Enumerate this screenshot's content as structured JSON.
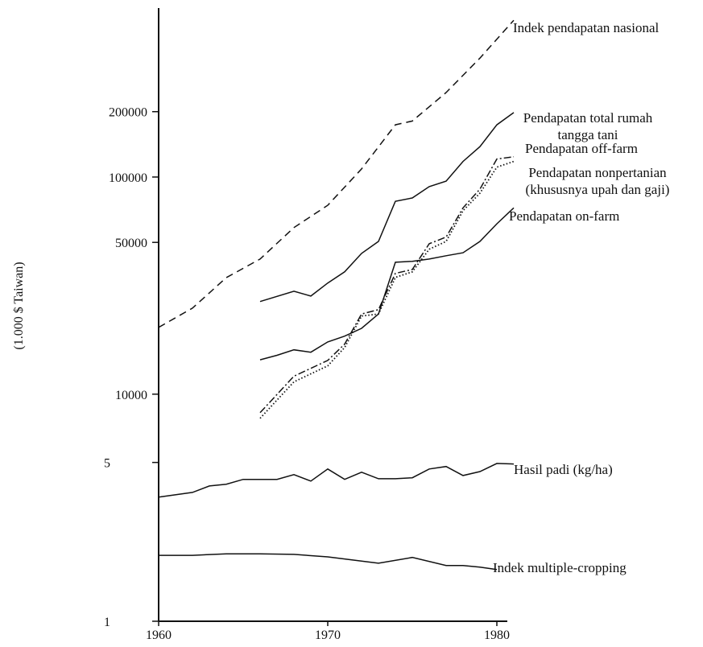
{
  "chart_data": {
    "type": "line",
    "y_label": "(1.000 $ Taiwan)",
    "xlim": [
      1960,
      1981
    ],
    "xticks": [
      1960,
      1970,
      1980
    ],
    "ylim": [
      900,
      600000
    ],
    "yticks": [
      10000,
      50000,
      100000,
      200000
    ],
    "y2lim": [
      1,
      500
    ],
    "y2ticks": [
      1,
      5
    ],
    "log_scale": true,
    "series": [
      {
        "name": "Indek pendapatan nasional",
        "color": "#111111",
        "style": "dashed",
        "x": [
          1960,
          1962,
          1964,
          1966,
          1968,
          1970,
          1972,
          1974,
          1975,
          1977,
          1979,
          1981
        ],
        "values": [
          20300,
          24900,
          34400,
          41900,
          58500,
          74100,
          109000,
          174000,
          181000,
          245000,
          353000,
          527000
        ]
      },
      {
        "name": "Pendapatan total rumah tangga tani",
        "color": "#111111",
        "style": "solid",
        "x": [
          1966,
          1968,
          1969,
          1970,
          1971,
          1972,
          1973,
          1974,
          1975,
          1976,
          1977,
          1978,
          1979,
          1980,
          1981
        ],
        "values": [
          26700,
          29800,
          28300,
          32500,
          36600,
          44500,
          50500,
          77300,
          80100,
          90300,
          95700,
          118000,
          138000,
          174000,
          198000
        ]
      },
      {
        "name": "Pendapatan off-farm",
        "color": "#111111",
        "style": "dashdot",
        "x": [
          1966,
          1968,
          1970,
          1971,
          1972,
          1973,
          1974,
          1975,
          1976,
          1977,
          1978,
          1979,
          1980,
          1981
        ],
        "values": [
          8220,
          12100,
          14300,
          17000,
          23400,
          24500,
          36000,
          37500,
          49300,
          52900,
          72100,
          88000,
          121000,
          124000
        ]
      },
      {
        "name": "Pendapatan nonpertanian (khususnya  upah dan gaji)",
        "color": "#111111",
        "style": "dotted",
        "x": [
          1966,
          1968,
          1970,
          1971,
          1972,
          1973,
          1974,
          1975,
          1976,
          1977,
          1978,
          1979,
          1980,
          1981
        ],
        "values": [
          7740,
          11400,
          13500,
          16400,
          22900,
          23400,
          34500,
          36600,
          46500,
          50500,
          70000,
          84300,
          111000,
          118000
        ]
      },
      {
        "name": "Pendapatan on-farm",
        "color": "#111111",
        "style": "solid",
        "x": [
          1966,
          1967,
          1968,
          1969,
          1970,
          1971,
          1972,
          1973,
          1974,
          1975,
          1976,
          1977,
          1978,
          1979,
          1980,
          1981
        ],
        "values": [
          14400,
          15100,
          16000,
          15600,
          17400,
          18500,
          20100,
          23400,
          40500,
          40900,
          41900,
          43400,
          44800,
          50500,
          60900,
          72100
        ]
      },
      {
        "name": "Hasil padi (kg/ha)",
        "color": "#111111",
        "style": "solid",
        "axis": "y2",
        "x": [
          1960,
          1962,
          1963,
          1964,
          1965,
          1966,
          1967,
          1968,
          1969,
          1970,
          1971,
          1972,
          1973,
          1974,
          1975,
          1976,
          1977,
          1978,
          1979,
          1980,
          1981
        ],
        "values": [
          3.52,
          3.69,
          3.94,
          4.01,
          4.21,
          4.21,
          4.21,
          4.42,
          4.14,
          4.68,
          4.21,
          4.53,
          4.24,
          4.24,
          4.28,
          4.68,
          4.8,
          4.38,
          4.56,
          4.95,
          4.92
        ]
      },
      {
        "name": "Indek multiple-cropping",
        "color": "#111111",
        "style": "solid",
        "axis": "y2",
        "x": [
          1960,
          1962,
          1964,
          1966,
          1968,
          1970,
          1972,
          1973,
          1975,
          1977,
          1978,
          1979,
          1980
        ],
        "values": [
          1.95,
          1.95,
          1.98,
          1.98,
          1.97,
          1.92,
          1.84,
          1.8,
          1.91,
          1.76,
          1.76,
          1.73,
          1.69
        ]
      }
    ]
  }
}
